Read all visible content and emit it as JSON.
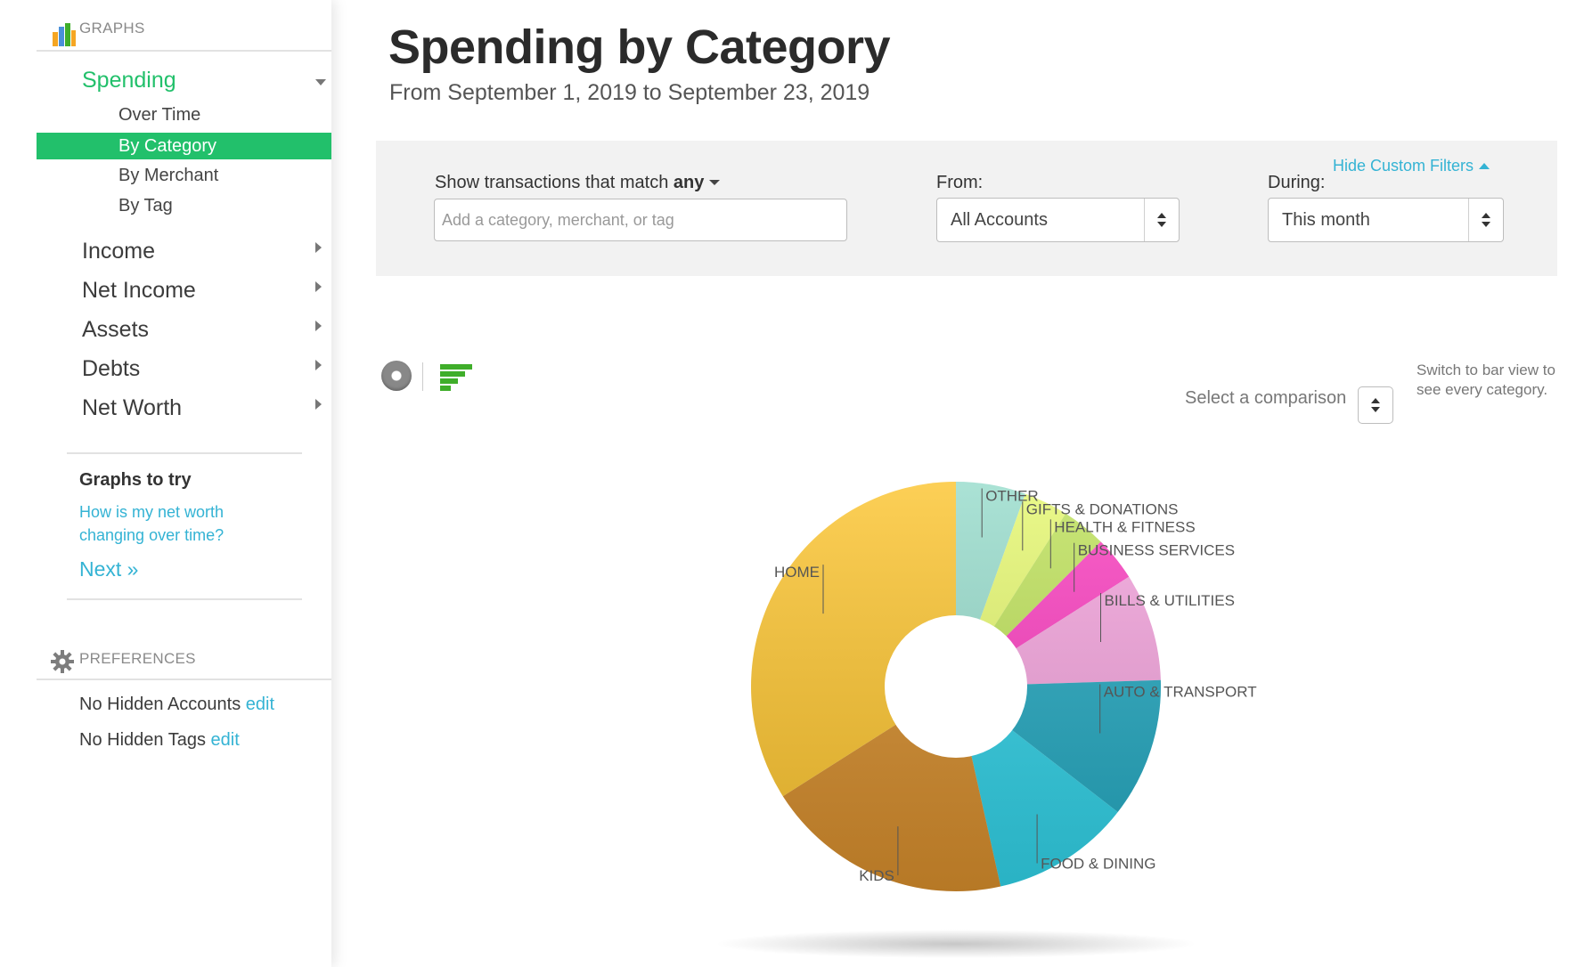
{
  "sidebar": {
    "graphs_header": "GRAPHS",
    "nav": [
      {
        "label": "Spending",
        "active": true,
        "expanded": true,
        "subs": [
          {
            "label": "Over Time"
          },
          {
            "label": "By Category",
            "selected": true
          },
          {
            "label": "By Merchant"
          },
          {
            "label": "By Tag"
          }
        ]
      },
      {
        "label": "Income"
      },
      {
        "label": "Net Income"
      },
      {
        "label": "Assets"
      },
      {
        "label": "Debts"
      },
      {
        "label": "Net Worth"
      }
    ],
    "graphs_to_try": {
      "title": "Graphs to try",
      "link": "How is my net worth changing over time?",
      "next": "Next »"
    },
    "preferences_header": "PREFERENCES",
    "preferences": [
      {
        "text": "No Hidden Accounts",
        "edit": "edit"
      },
      {
        "text": "No Hidden Tags",
        "edit": "edit"
      }
    ]
  },
  "header": {
    "title": "Spending by Category",
    "subtitle": "From September 1, 2019 to September 23, 2019"
  },
  "filters": {
    "hide_label": "Hide Custom Filters",
    "match_label": "Show transactions that match",
    "match_value": "any",
    "search_placeholder": "Add a category, merchant, or tag",
    "search_value": "",
    "from_label": "From:",
    "from_value": "All Accounts",
    "during_label": "During:",
    "during_value": "This month"
  },
  "controls": {
    "comparison_label": "Select a comparison",
    "tip": "Switch to bar view to see every category."
  },
  "colors": {
    "accent_green": "#22c06b",
    "link_blue": "#34b3d4"
  },
  "chart_data": {
    "type": "pie",
    "donut": true,
    "categories": [
      "OTHER",
      "GIFTS & DONATIONS",
      "HEALTH & FITNESS",
      "BUSINESS SERVICES",
      "BILLS & UTILITIES",
      "AUTO & TRANSPORT",
      "FOOD & DINING",
      "KIDS",
      "HOME"
    ],
    "values": [
      5.5,
      3.5,
      3.5,
      3.5,
      8.5,
      11,
      11,
      19.5,
      34
    ],
    "colors": [
      "#98dccc",
      "#e6f871",
      "#bfe25b",
      "#fb3fc0",
      "#f4a4dd",
      "#23a7bf",
      "#30cfe4",
      "#d48c2c",
      "#fcc531"
    ],
    "label_style": "leader-lines"
  }
}
